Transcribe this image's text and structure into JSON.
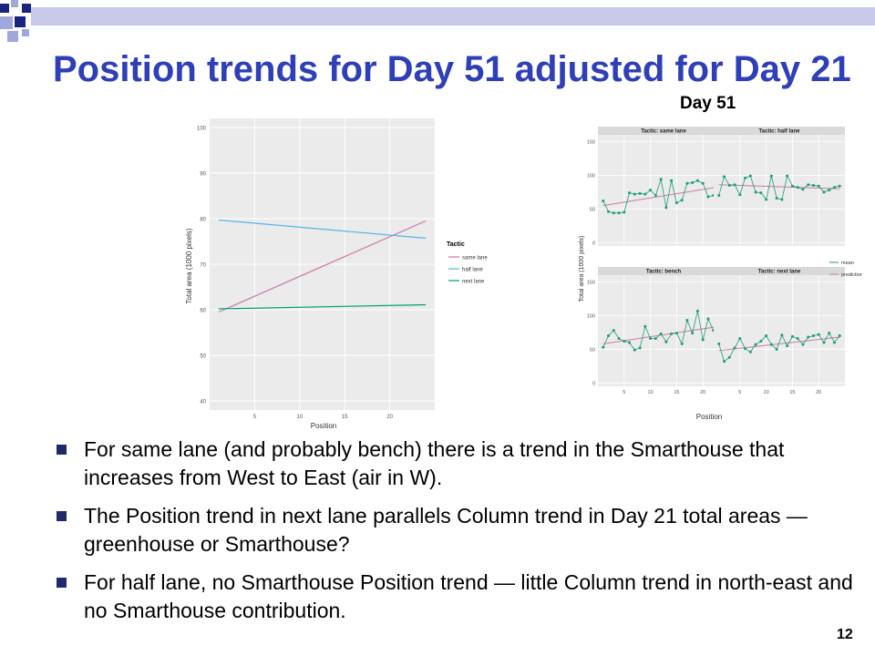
{
  "slide": {
    "title": "Position trends for Day 51 adjusted for Day 21",
    "figure_label": "Day 51",
    "page_number": "12",
    "bullets": [
      "For same lane (and probably bench) there is a trend in the Smarthouse that increases from West to East (air in W).",
      "The Position trend in next lane parallels Column trend in Day 21 total areas — greenhouse or Smarthouse?",
      "For half lane, no Smarthouse Position trend — little Column trend in north-east and no Smarthouse contribution."
    ],
    "colors": {
      "title": "#2e3fb8",
      "bullet": "#1f2a6b",
      "deco_dark": "#1a237e",
      "deco_light": "#9fa8da"
    }
  },
  "chart_data": [
    {
      "type": "line",
      "title": "",
      "xlabel": "Position",
      "ylabel": "Total area (1000 pixels)",
      "xlim": [
        0,
        25
      ],
      "ylim": [
        38,
        102
      ],
      "xticks": [
        5,
        10,
        15,
        20
      ],
      "yticks": [
        40,
        50,
        60,
        70,
        80,
        90,
        100
      ],
      "grid": true,
      "legend_title": "Tactic",
      "legend_position": "right",
      "series": [
        {
          "name": "same lane",
          "color": "#cc79a7",
          "x": [
            1,
            24
          ],
          "y": [
            59.5,
            79.5
          ]
        },
        {
          "name": "half lane",
          "color": "#56b4e9",
          "x": [
            1,
            24
          ],
          "y": [
            79.7,
            75.7
          ]
        },
        {
          "name": "next lane",
          "color": "#009e73",
          "x": [
            1,
            24
          ],
          "y": [
            60.2,
            61.1
          ]
        }
      ]
    },
    {
      "type": "line",
      "title": "Day 51",
      "xlabel": "Position",
      "ylabel": "Total area (1000 pixels)",
      "xlim": [
        0,
        25
      ],
      "ylim": [
        -5,
        160
      ],
      "xticks": [
        5,
        10,
        15,
        20
      ],
      "yticks": [
        0,
        50,
        100,
        150
      ],
      "grid": true,
      "legend_position": "right",
      "legend": [
        {
          "name": "mean",
          "color": "#1b9e77"
        },
        {
          "name": "prediction",
          "color": "#cc79a7"
        }
      ],
      "panels": [
        {
          "name": "Tactic: same lane",
          "mean": [
            62,
            46,
            44,
            44,
            45,
            74,
            72,
            73,
            72,
            78,
            70,
            94,
            52,
            92,
            59,
            63,
            88,
            89,
            92,
            88,
            68,
            70,
            74,
            78
          ],
          "prediction": [
            [
              1,
              55
            ],
            [
              24,
              84
            ]
          ]
        },
        {
          "name": "Tactic: half lane",
          "mean": [
            70,
            98,
            85,
            86,
            71,
            96,
            99,
            75,
            74,
            64,
            99,
            66,
            64,
            99,
            84,
            82,
            79,
            86,
            85,
            84,
            75,
            78,
            82,
            84
          ],
          "prediction": [
            [
              1,
              86
            ],
            [
              24,
              80
            ]
          ]
        },
        {
          "name": "Tactic: bench",
          "mean": [
            53,
            70,
            78,
            66,
            62,
            60,
            49,
            52,
            84,
            66,
            66,
            73,
            61,
            73,
            74,
            58,
            93,
            74,
            107,
            64,
            95,
            78,
            77,
            104
          ],
          "prediction": [
            [
              1,
              58
            ],
            [
              24,
              85
            ]
          ]
        },
        {
          "name": "Tactic: next lane",
          "mean": [
            58,
            32,
            38,
            52,
            66,
            51,
            46,
            57,
            62,
            70,
            57,
            50,
            71,
            55,
            69,
            66,
            57,
            68,
            70,
            72,
            60,
            74,
            60,
            70
          ],
          "prediction": [
            [
              1,
              48
            ],
            [
              24,
              68
            ]
          ]
        }
      ]
    }
  ]
}
